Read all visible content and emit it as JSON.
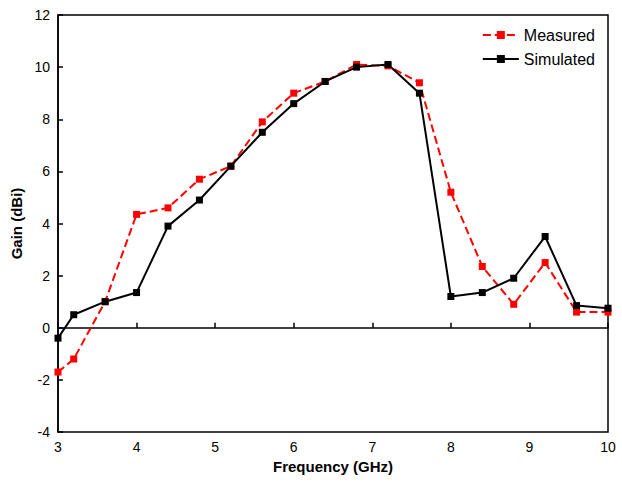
{
  "chart_data": {
    "type": "line",
    "xlabel": "Frequency (GHz)",
    "ylabel": "Gain (dBi)",
    "x": [
      3,
      3.2,
      3.6,
      4,
      4.4,
      4.8,
      5.2,
      5.6,
      6,
      6.4,
      6.8,
      7.2,
      7.6,
      8,
      8.4,
      8.8,
      9.2,
      9.6,
      10
    ],
    "series": [
      {
        "name": "Measured",
        "color": "#ff0000",
        "marker": "square",
        "line_style": "dashed",
        "values": [
          -1.7,
          -1.2,
          1.0,
          4.35,
          4.6,
          5.7,
          6.2,
          7.9,
          9.0,
          9.45,
          10.1,
          10.05,
          9.4,
          5.2,
          2.35,
          0.9,
          2.5,
          0.6,
          0.6
        ]
      },
      {
        "name": "Simulated",
        "color": "#000000",
        "marker": "square",
        "line_style": "solid",
        "values": [
          -0.4,
          0.5,
          1.0,
          1.35,
          3.9,
          4.9,
          6.2,
          7.5,
          8.6,
          9.45,
          10.0,
          10.1,
          9.0,
          1.2,
          1.35,
          1.9,
          3.5,
          0.85,
          0.75
        ]
      }
    ],
    "xlim": [
      3,
      10
    ],
    "ylim": [
      -4,
      12
    ],
    "xticks": [
      3,
      4,
      5,
      6,
      7,
      8,
      9,
      10
    ],
    "yticks": [
      -4,
      -2,
      0,
      2,
      4,
      6,
      8,
      10,
      12
    ],
    "grid": false,
    "legend": "upper right"
  }
}
